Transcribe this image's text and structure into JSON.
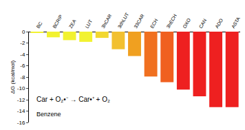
{
  "chart_data": {
    "type": "bar",
    "y_label": "ΔG (kcal/mol)",
    "categories": [
      "BC",
      "BCRIP",
      "ZEA",
      "LUT",
      "3hCAR",
      "3dhLUT",
      "33CAR",
      "ECH",
      "3hECH",
      "OXO",
      "CAN",
      "ADO",
      "ASTA"
    ],
    "values": [
      -0.2,
      -1.0,
      -1.5,
      -1.8,
      -1.1,
      -3.1,
      -4.3,
      -7.9,
      -8.9,
      -10.2,
      -11.4,
      -13.3,
      -13.3
    ],
    "colors": [
      "#f2f230",
      "#f2f230",
      "#f2f230",
      "#f2f230",
      "#f2d830",
      "#f2c030",
      "#f0a020",
      "#f07020",
      "#f06020",
      "#ee2020",
      "#ee2020",
      "#ee2020",
      "#ee2020"
    ],
    "ylim": [
      -16,
      0
    ],
    "yticks": [
      -16,
      -14,
      -12,
      -10,
      -8,
      -6,
      -4,
      -2,
      0
    ],
    "grid": false,
    "annotations": [
      "Car + O₂•⁻ → Car•⁺ + O₂",
      "Benzene"
    ]
  }
}
